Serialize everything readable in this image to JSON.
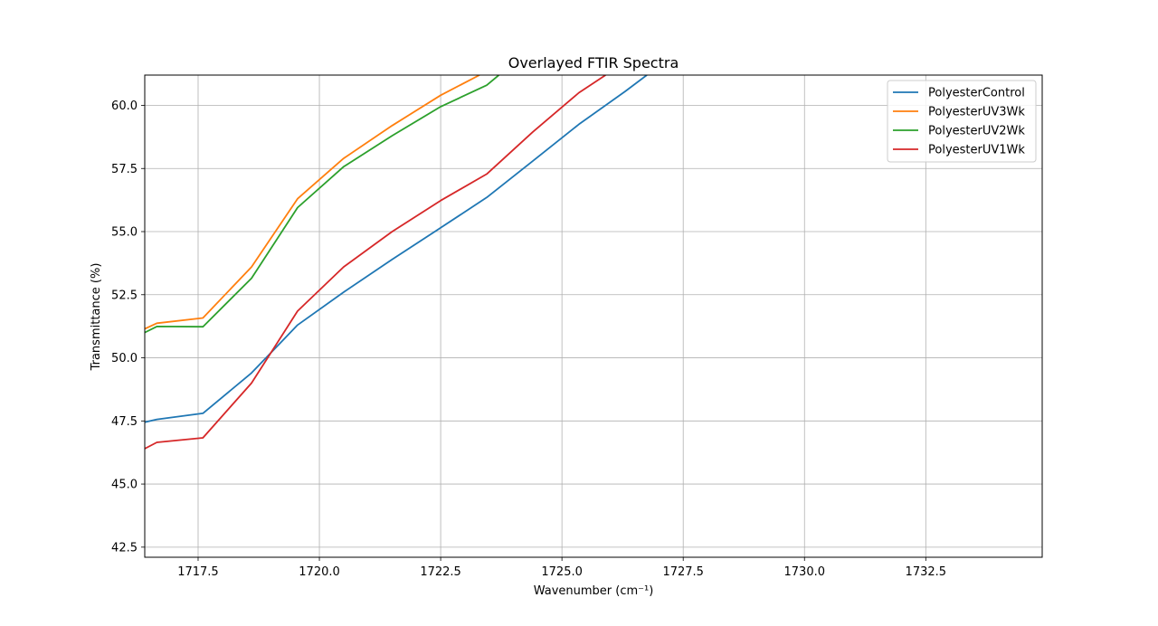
{
  "chart_data": {
    "type": "line",
    "title": "Overlayed FTIR Spectra",
    "xlabel": "Wavenumber (cm⁻¹)",
    "ylabel": "Transmittance (%)",
    "xlim": [
      1716.4,
      1734.9
    ],
    "ylim": [
      42.1,
      61.2
    ],
    "xticks": [
      1717.5,
      1720.0,
      1722.5,
      1725.0,
      1727.5,
      1730.0,
      1732.5
    ],
    "xtick_labels": [
      "1717.5",
      "1720.0",
      "1722.5",
      "1725.0",
      "1727.5",
      "1730.0",
      "1732.5"
    ],
    "yticks": [
      42.5,
      45.0,
      47.5,
      50.0,
      52.5,
      55.0,
      57.5,
      60.0
    ],
    "ytick_labels": [
      "42.5",
      "45.0",
      "47.5",
      "50.0",
      "52.5",
      "55.0",
      "57.5",
      "60.0"
    ],
    "grid": true,
    "legend_position": "top-right",
    "series": [
      {
        "name": "PolyesterControl",
        "color": "#1f77b4",
        "points": [
          [
            1716.4,
            47.45
          ],
          [
            1716.65,
            47.56
          ],
          [
            1717.6,
            47.8
          ],
          [
            1718.6,
            49.4
          ],
          [
            1719.55,
            51.3
          ],
          [
            1720.5,
            52.6
          ],
          [
            1721.5,
            53.9
          ],
          [
            1722.5,
            55.15
          ],
          [
            1723.45,
            56.35
          ],
          [
            1724.4,
            57.8
          ],
          [
            1725.35,
            59.25
          ],
          [
            1726.3,
            60.55
          ],
          [
            1726.75,
            61.2
          ]
        ]
      },
      {
        "name": "PolyesterUV3Wk",
        "color": "#ff7f0e",
        "points": [
          [
            1716.4,
            51.15
          ],
          [
            1716.65,
            51.37
          ],
          [
            1717.6,
            51.58
          ],
          [
            1718.6,
            53.6
          ],
          [
            1719.55,
            56.3
          ],
          [
            1720.5,
            57.9
          ],
          [
            1721.5,
            59.2
          ],
          [
            1722.5,
            60.4
          ],
          [
            1723.3,
            61.2
          ]
        ]
      },
      {
        "name": "PolyesterUV2Wk",
        "color": "#2ca02c",
        "points": [
          [
            1716.4,
            51.0
          ],
          [
            1716.65,
            51.24
          ],
          [
            1717.6,
            51.23
          ],
          [
            1718.6,
            53.15
          ],
          [
            1719.55,
            55.95
          ],
          [
            1720.5,
            57.57
          ],
          [
            1721.5,
            58.8
          ],
          [
            1722.5,
            59.95
          ],
          [
            1723.45,
            60.8
          ],
          [
            1723.7,
            61.2
          ]
        ]
      },
      {
        "name": "PolyesterUV1Wk",
        "color": "#d62728",
        "points": [
          [
            1716.4,
            46.4
          ],
          [
            1716.65,
            46.65
          ],
          [
            1717.6,
            46.83
          ],
          [
            1718.6,
            49.0
          ],
          [
            1719.55,
            51.85
          ],
          [
            1720.5,
            53.6
          ],
          [
            1721.5,
            55.0
          ],
          [
            1722.5,
            56.23
          ],
          [
            1723.45,
            57.28
          ],
          [
            1724.4,
            58.95
          ],
          [
            1725.35,
            60.5
          ],
          [
            1725.9,
            61.2
          ]
        ]
      }
    ]
  }
}
